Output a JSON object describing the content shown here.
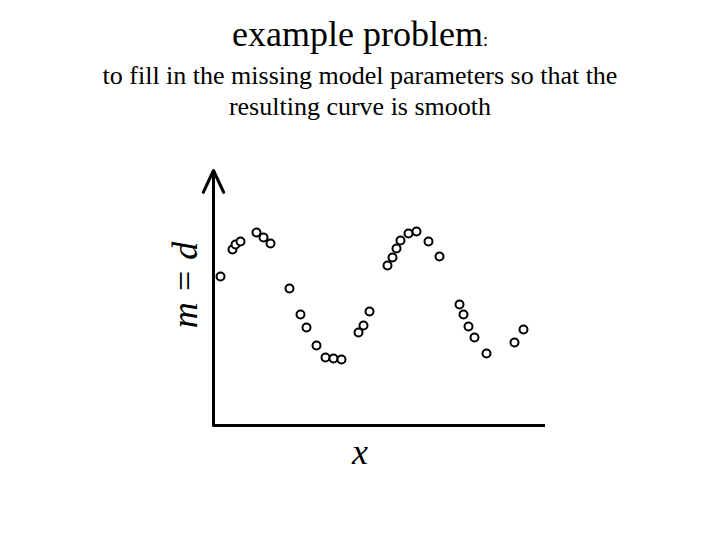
{
  "chart_data": {
    "type": "scatter",
    "title": "example problem:",
    "subtitle": "to fill in the missing model parameters so that the resulting curve is smooth",
    "x_label": "x",
    "y_label": "m = d",
    "x": [
      7,
      19,
      22,
      27,
      43,
      50,
      57,
      76,
      87,
      93,
      103,
      112,
      120,
      128,
      145,
      150,
      156,
      174,
      179,
      183,
      187,
      195,
      203,
      215,
      226,
      246,
      250,
      255,
      261,
      273,
      301,
      310
    ],
    "values": [
      149,
      176,
      181,
      184,
      193,
      188,
      182,
      137,
      111,
      98,
      80,
      68,
      67,
      66,
      93,
      100,
      114,
      160,
      168,
      177,
      185,
      192,
      194,
      184,
      169,
      121,
      111,
      99,
      88,
      72,
      83,
      96
    ],
    "xlim": [
      0,
      332
    ],
    "ylim": [
      0,
      255
    ],
    "tick_labels": false,
    "grid": false,
    "color": "#000000",
    "marker": "circle"
  }
}
